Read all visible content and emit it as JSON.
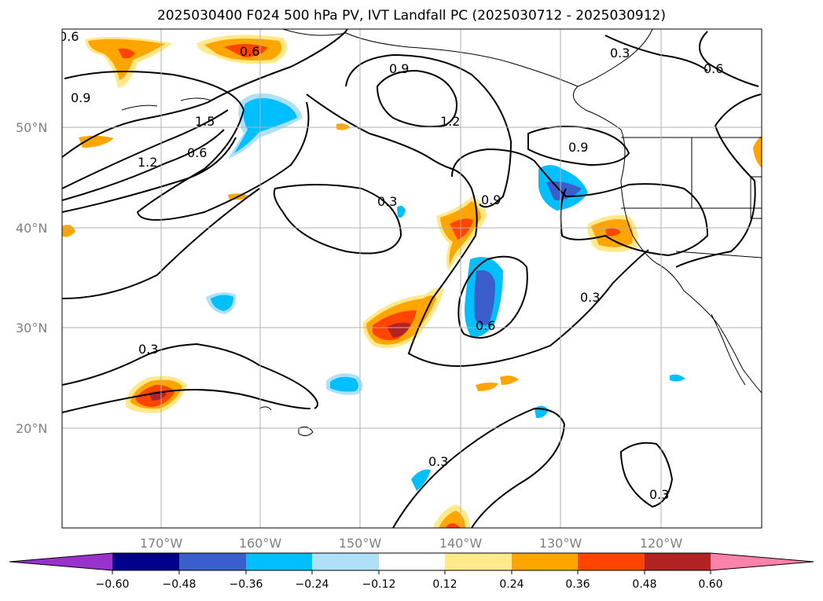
{
  "map": {
    "title": "2025030400 F024 500 hPa PV, IVT Landfall PC (2025030712 - 2025030912)",
    "lat_ticks": [
      {
        "lat": 50,
        "label": "50°N"
      },
      {
        "lat": 40,
        "label": "40°N"
      },
      {
        "lat": 30,
        "label": "30°N"
      },
      {
        "lat": 20,
        "label": "20°N"
      }
    ],
    "lon_ticks": [
      {
        "lon": -170,
        "label": "170°W"
      },
      {
        "lon": -160,
        "label": "160°W"
      },
      {
        "lon": -150,
        "label": "150°W"
      },
      {
        "lon": -140,
        "label": "140°W"
      },
      {
        "lon": -130,
        "label": "130°W"
      },
      {
        "lon": -120,
        "label": "120°W"
      }
    ],
    "contour_labels": [
      "0.6",
      "0.6",
      "0.9",
      "0.3",
      "0.6",
      "0.9",
      "1.2",
      "1.5",
      "1.2",
      "0.6",
      "0.9",
      "0.3",
      "0.9",
      "0.3",
      "0.6",
      "0.3",
      "0.3",
      "0.3"
    ],
    "colorbar": {
      "ticks": [
        "−0.60",
        "−0.48",
        "−0.36",
        "−0.24",
        "−0.12",
        "0.12",
        "0.24",
        "0.36",
        "0.48",
        "0.60"
      ],
      "colors": [
        "#9932cc",
        "#00008b",
        "#3a5fcd",
        "#00bfff",
        "#afe0f8",
        "#ffffff",
        "#ffe98a",
        "#ffa500",
        "#ff4500",
        "#b22222",
        "#ff82ab"
      ]
    }
  }
}
